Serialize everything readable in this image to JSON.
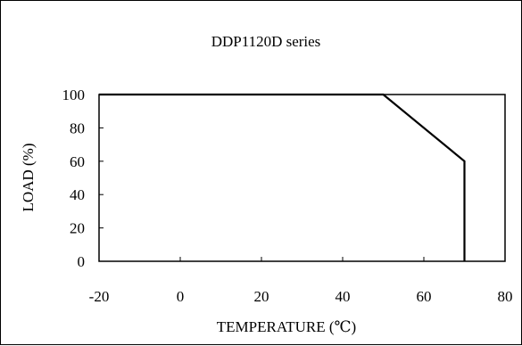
{
  "chart_data": {
    "type": "line",
    "title": "DDP1120D series",
    "xlabel": "TEMPERATURE (℃)",
    "ylabel": "LOAD (%)",
    "xlim": [
      -20,
      80
    ],
    "ylim": [
      0,
      100
    ],
    "x_ticks": [
      -20,
      0,
      20,
      40,
      60,
      80
    ],
    "y_ticks": [
      0,
      20,
      40,
      60,
      80,
      100
    ],
    "grid": false,
    "series": [
      {
        "x": [
          -20,
          50,
          70,
          70
        ],
        "y": [
          100,
          100,
          60,
          0
        ]
      }
    ]
  }
}
